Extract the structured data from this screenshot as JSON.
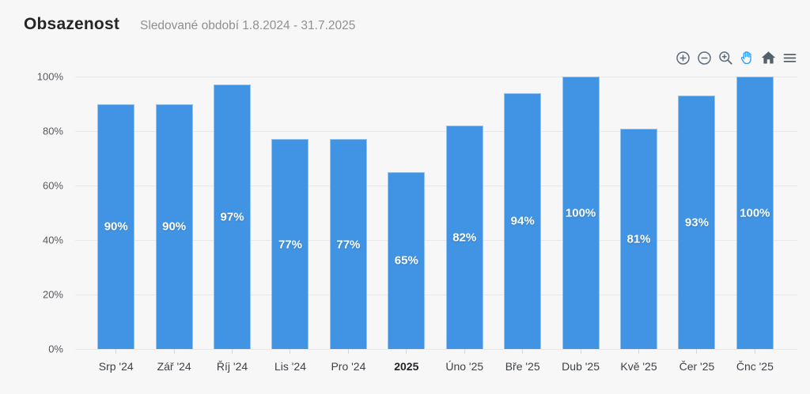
{
  "header": {
    "title": "Obsazenost",
    "subtitle": "Sledované období 1.8.2024 - 31.7.2025"
  },
  "toolbar": {
    "items": [
      {
        "name": "zoom-in-icon",
        "active": false
      },
      {
        "name": "zoom-out-icon",
        "active": false
      },
      {
        "name": "selection-zoom-icon",
        "active": false
      },
      {
        "name": "pan-icon",
        "active": true
      },
      {
        "name": "home-icon",
        "active": false
      },
      {
        "name": "menu-icon",
        "active": false
      }
    ],
    "icon_color": "#5d6c7b",
    "active_color": "#35a1f7"
  },
  "chart_data": {
    "type": "bar",
    "title": "Obsazenost",
    "subtitle": "Sledované období 1.8.2024 - 31.7.2025",
    "categories": [
      "Srp '24",
      "Zář '24",
      "Říj '24",
      "Lis '24",
      "Pro '24",
      "2025",
      "Úno '25",
      "Bře '25",
      "Dub '25",
      "Kvě '25",
      "Čer '25",
      "Čnc '25"
    ],
    "values": [
      90,
      90,
      97,
      77,
      77,
      65,
      82,
      94,
      100,
      81,
      93,
      100
    ],
    "data_labels": [
      "90%",
      "90%",
      "97%",
      "77%",
      "77%",
      "65%",
      "82%",
      "94%",
      "100%",
      "81%",
      "93%",
      "100%"
    ],
    "emphasized_category": "2025",
    "y_ticks": [
      "100%",
      "80%",
      "60%",
      "40%",
      "20%",
      "0%"
    ],
    "ylim": [
      0,
      100
    ],
    "xlabel": "",
    "ylabel": "",
    "grid": true,
    "legend": "none",
    "bar_color": "#4194e4",
    "label_color": "#ffffff",
    "grid_color": "#e8e8ea"
  }
}
